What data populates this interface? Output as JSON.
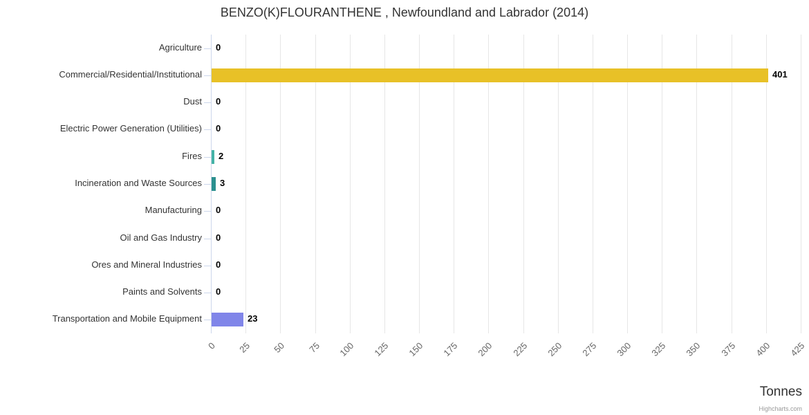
{
  "credits": "Highcharts.com",
  "chart_data": {
    "type": "bar",
    "orientation": "horizontal",
    "title": "BENZO(K)FLOURANTHENE , Newfoundland and Labrador (2014)",
    "xlabel": "Tonnes",
    "ylabel": "",
    "xlim": [
      0,
      425
    ],
    "tick_interval": 25,
    "grid": true,
    "legend": "none",
    "categories": [
      "Agriculture",
      "Commercial/Residential/Institutional",
      "Dust",
      "Electric Power Generation (Utilities)",
      "Fires",
      "Incineration and Waste Sources",
      "Manufacturing",
      "Oil and Gas Industry",
      "Ores and Mineral Industries",
      "Paints and Solvents",
      "Transportation and Mobile Equipment"
    ],
    "values": [
      0,
      401,
      0,
      0,
      2,
      3,
      0,
      0,
      0,
      0,
      23
    ],
    "bar_colors": [
      null,
      "#e8c127",
      null,
      null,
      "#44b3a6",
      "#2b908f",
      null,
      null,
      null,
      null,
      "#8085e9"
    ],
    "default_bar_color": "#7cb5ec",
    "tick_labels": [
      "0",
      "25",
      "50",
      "75",
      "100",
      "125",
      "150",
      "175",
      "200",
      "225",
      "250",
      "275",
      "300",
      "325",
      "350",
      "375",
      "400",
      "425"
    ],
    "value_label_color": "#000000",
    "category_label_color": "#333333",
    "tick_label_color": "#666666",
    "grid_color": "#e6e6e6",
    "axis_line_color": "#ccd6eb"
  }
}
